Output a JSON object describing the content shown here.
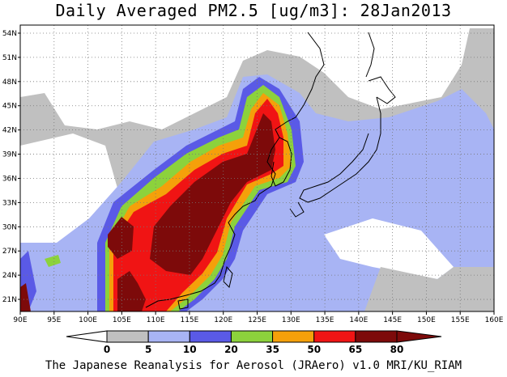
{
  "title": "Daily Averaged PM2.5 [ug/m3]: 28Jan2013",
  "credit": "The Japanese Reanalysis for Aerosol (JRAero) v1.0 MRI/KU_RIAM",
  "map": {
    "lon_range": [
      90,
      160
    ],
    "lat_range": [
      19.5,
      55
    ],
    "grid": true,
    "lon_ticks": [
      "90E",
      "95E",
      "100E",
      "105E",
      "110E",
      "115E",
      "120E",
      "125E",
      "130E",
      "135E",
      "140E",
      "145E",
      "150E",
      "155E",
      "160E"
    ],
    "lat_ticks": [
      "21N",
      "24N",
      "27N",
      "30N",
      "33N",
      "36N",
      "39N",
      "42N",
      "45N",
      "48N",
      "51N",
      "54N"
    ]
  },
  "colorbar": {
    "levels": [
      "0",
      "5",
      "10",
      "20",
      "35",
      "50",
      "65",
      "80"
    ],
    "colors": [
      "#ffffff",
      "#c0c0c0",
      "#a8b4f4",
      "#5a5ae6",
      "#8cd23c",
      "#f5a00a",
      "#f01414",
      "#7d0a0a"
    ],
    "below_color": "#ffffff",
    "above_color": "#7d0a0a"
  }
}
